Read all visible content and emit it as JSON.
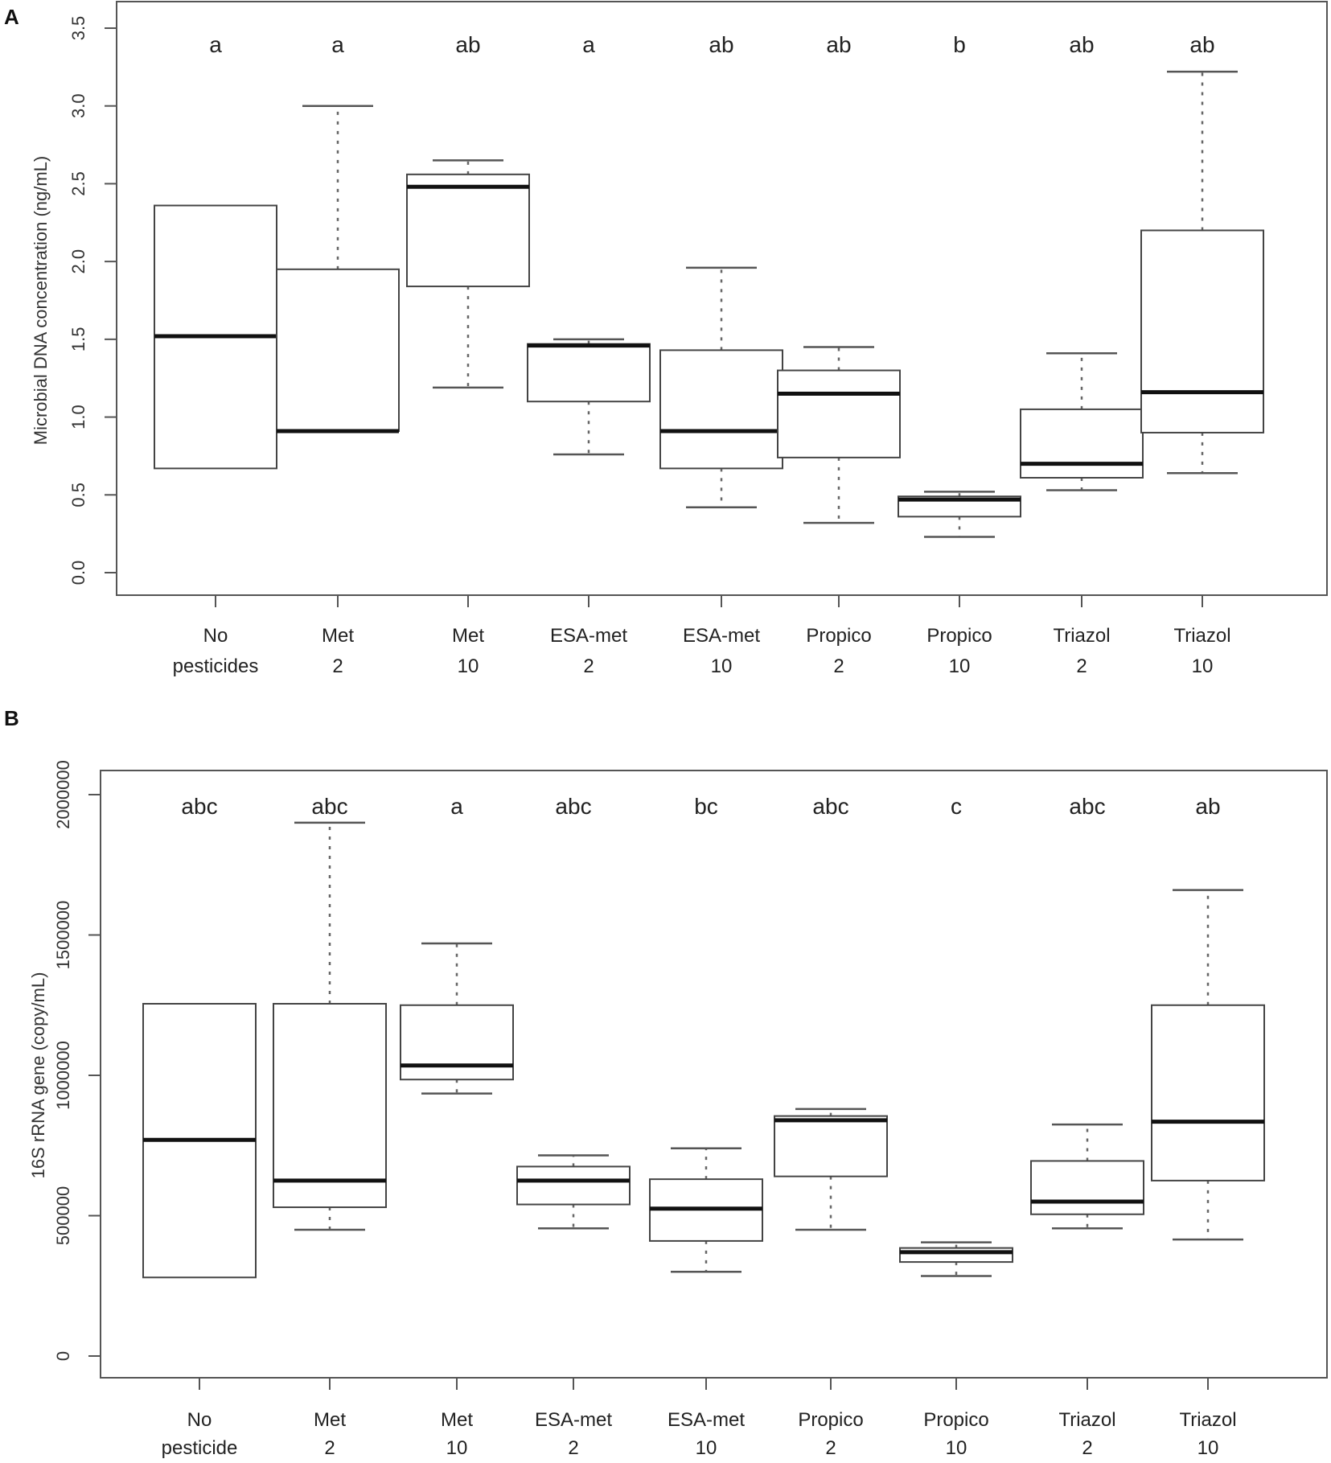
{
  "chart_data": [
    {
      "panel_label": "A",
      "type": "boxplot",
      "ylabel": "Microbial DNA concentration (ng/mL)",
      "ylim": [
        0,
        3.5
      ],
      "yticks": [
        "0.0",
        "0.5",
        "1.0",
        "1.5",
        "2.0",
        "2.5",
        "3.0",
        "3.5"
      ],
      "ytick_values": [
        0.0,
        0.5,
        1.0,
        1.5,
        2.0,
        2.5,
        3.0,
        3.5
      ],
      "categories": [
        [
          "No",
          "pesticides"
        ],
        [
          "Met",
          "2"
        ],
        [
          "Met",
          "10"
        ],
        [
          "ESA-met",
          "2"
        ],
        [
          "ESA-met",
          "10"
        ],
        [
          "Propico",
          "2"
        ],
        [
          "Propico",
          "10"
        ],
        [
          "Triazol",
          "2"
        ],
        [
          "Triazol",
          "10"
        ]
      ],
      "significance": [
        "a",
        "a",
        "ab",
        "a",
        "ab",
        "ab",
        "b",
        "ab",
        "ab"
      ],
      "boxes": [
        {
          "whisker_low": 0.67,
          "q1": 0.67,
          "median": 1.52,
          "q3": 2.36,
          "whisker_high": 2.36
        },
        {
          "whisker_low": 0.91,
          "q1": 0.91,
          "median": 0.91,
          "q3": 1.95,
          "whisker_high": 3.0
        },
        {
          "whisker_low": 1.19,
          "q1": 1.84,
          "median": 2.48,
          "q3": 2.56,
          "whisker_high": 2.65
        },
        {
          "whisker_low": 0.76,
          "q1": 1.1,
          "median": 1.46,
          "q3": 1.47,
          "whisker_high": 1.5
        },
        {
          "whisker_low": 0.42,
          "q1": 0.67,
          "median": 0.91,
          "q3": 1.43,
          "whisker_high": 1.96
        },
        {
          "whisker_low": 0.32,
          "q1": 0.74,
          "median": 1.15,
          "q3": 1.3,
          "whisker_high": 1.45
        },
        {
          "whisker_low": 0.23,
          "q1": 0.36,
          "median": 0.47,
          "q3": 0.49,
          "whisker_high": 0.52
        },
        {
          "whisker_low": 0.53,
          "q1": 0.61,
          "median": 0.7,
          "q3": 1.05,
          "whisker_high": 1.41
        },
        {
          "whisker_low": 0.64,
          "q1": 0.9,
          "median": 1.16,
          "q3": 2.2,
          "whisker_high": 3.22
        }
      ]
    },
    {
      "panel_label": "B",
      "type": "boxplot",
      "ylabel": "16S rRNA gene (copy/mL)",
      "ylim": [
        0,
        2000000
      ],
      "yticks": [
        "0",
        "500000",
        "1000000",
        "1500000",
        "2000000"
      ],
      "ytick_values": [
        0,
        500000,
        1000000,
        1500000,
        2000000
      ],
      "categories": [
        [
          "No",
          "pesticide"
        ],
        [
          "Met",
          "2"
        ],
        [
          "Met",
          "10"
        ],
        [
          "ESA-met",
          "2"
        ],
        [
          "ESA-met",
          "10"
        ],
        [
          "Propico",
          "2"
        ],
        [
          "Propico",
          "10"
        ],
        [
          "Triazol",
          "2"
        ],
        [
          "Triazol",
          "10"
        ]
      ],
      "significance": [
        "abc",
        "abc",
        "a",
        "abc",
        "bc",
        "abc",
        "c",
        "abc",
        "ab"
      ],
      "boxes": [
        {
          "whisker_low": 280000,
          "q1": 280000,
          "median": 770000,
          "q3": 1255000,
          "whisker_high": 1255000
        },
        {
          "whisker_low": 450000,
          "q1": 530000,
          "median": 625000,
          "q3": 1255000,
          "whisker_high": 1900000
        },
        {
          "whisker_low": 935000,
          "q1": 985000,
          "median": 1035000,
          "q3": 1250000,
          "whisker_high": 1470000
        },
        {
          "whisker_low": 455000,
          "q1": 540000,
          "median": 625000,
          "q3": 675000,
          "whisker_high": 715000
        },
        {
          "whisker_low": 300000,
          "q1": 410000,
          "median": 525000,
          "q3": 630000,
          "whisker_high": 740000
        },
        {
          "whisker_low": 450000,
          "q1": 640000,
          "median": 840000,
          "q3": 855000,
          "whisker_high": 880000
        },
        {
          "whisker_low": 285000,
          "q1": 335000,
          "median": 370000,
          "q3": 385000,
          "whisker_high": 405000
        },
        {
          "whisker_low": 455000,
          "q1": 505000,
          "median": 550000,
          "q3": 695000,
          "whisker_high": 825000
        },
        {
          "whisker_low": 415000,
          "q1": 625000,
          "median": 835000,
          "q3": 1250000,
          "whisker_high": 1660000
        }
      ]
    }
  ]
}
